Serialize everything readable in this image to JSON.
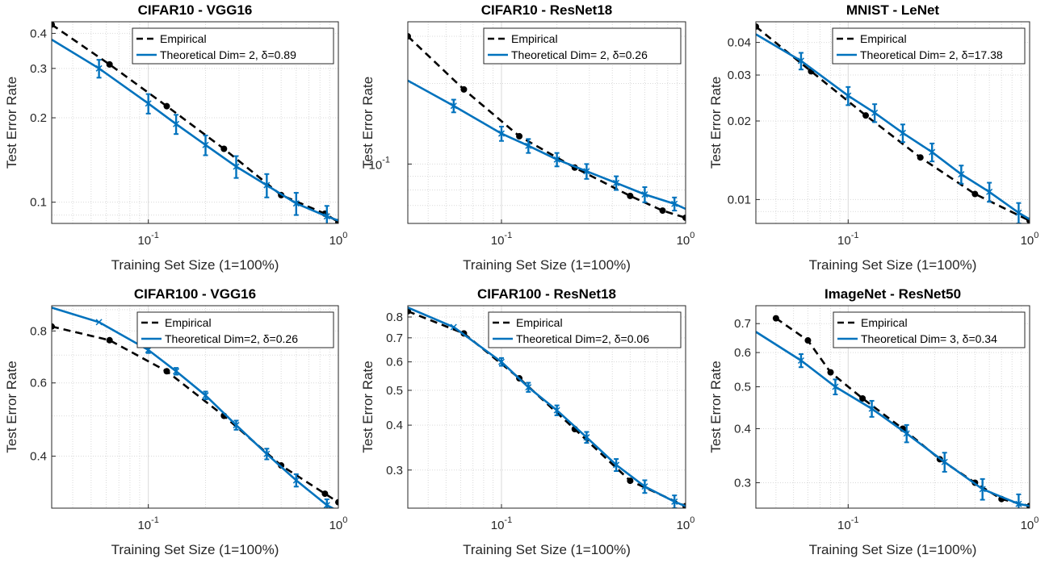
{
  "colors": {
    "empirical": "#000000",
    "theoretical": "#0072BD",
    "grid": "#d9d9d9",
    "axis": "#262626"
  },
  "chart_data": [
    {
      "type": "line",
      "title": "CIFAR10 - VGG16",
      "xlabel": "Training Set Size (1=100%)",
      "ylabel": "Test Error Rate",
      "xscale": "log",
      "yscale": "log",
      "xlim": [
        0.031,
        1.0
      ],
      "ylim": [
        0.084,
        0.44
      ],
      "xticks": [
        {
          "v": 0.1,
          "b": "10",
          "e": "-1"
        },
        {
          "v": 1,
          "b": "10",
          "e": "0"
        }
      ],
      "yticks": [
        {
          "v": 0.1,
          "t": "0.1"
        },
        {
          "v": 0.2,
          "t": "0.2"
        },
        {
          "v": 0.3,
          "t": "0.3"
        },
        {
          "v": 0.4,
          "t": "0.4"
        }
      ],
      "grid": true,
      "legend_position": "top-right",
      "series": [
        {
          "name": "Empirical",
          "kind": "empirical",
          "x": [
            0.031,
            0.0625,
            0.125,
            0.25,
            0.5,
            0.85,
            1.0
          ],
          "y": [
            0.43,
            0.31,
            0.22,
            0.155,
            0.106,
            0.091,
            0.085
          ]
        },
        {
          "name": "Theoretical Dim= 2, δ=0.89",
          "kind": "theoretical",
          "x": [
            0.031,
            0.055,
            0.1,
            0.14,
            0.2,
            0.29,
            0.42,
            0.6,
            0.87,
            1.0
          ],
          "y": [
            0.38,
            0.3,
            0.225,
            0.19,
            0.16,
            0.134,
            0.115,
            0.099,
            0.089,
            0.086
          ],
          "err": [
            0.0,
            0.022,
            0.018,
            0.015,
            0.013,
            0.012,
            0.011,
            0.009,
            0.008,
            0.0
          ]
        }
      ]
    },
    {
      "type": "line",
      "title": "CIFAR10 - ResNet18",
      "xlabel": "Training Set Size (1=100%)",
      "ylabel": "Test Error Rate",
      "xscale": "log",
      "yscale": "log",
      "xlim": [
        0.031,
        1.0
      ],
      "ylim": [
        0.06,
        0.34
      ],
      "xticks": [
        {
          "v": 0.1,
          "b": "10",
          "e": "-1"
        },
        {
          "v": 1,
          "b": "10",
          "e": "0"
        }
      ],
      "yticks": [
        {
          "v": 0.1,
          "b": "10",
          "e": "-1"
        }
      ],
      "grid": true,
      "legend_position": "top-right",
      "series": [
        {
          "name": "Empirical",
          "kind": "empirical",
          "x": [
            0.031,
            0.0625,
            0.125,
            0.25,
            0.5,
            0.75,
            1.0
          ],
          "y": [
            0.3,
            0.19,
            0.127,
            0.097,
            0.076,
            0.067,
            0.063
          ]
        },
        {
          "name": "Theoretical Dim= 2, δ=0.26",
          "kind": "theoretical",
          "x": [
            0.031,
            0.055,
            0.1,
            0.14,
            0.2,
            0.29,
            0.42,
            0.6,
            0.87,
            1.0
          ],
          "y": [
            0.205,
            0.165,
            0.13,
            0.117,
            0.104,
            0.094,
            0.085,
            0.077,
            0.071,
            0.068
          ],
          "err": [
            0.0,
            0.009,
            0.008,
            0.007,
            0.006,
            0.006,
            0.005,
            0.005,
            0.004,
            0.0
          ]
        }
      ]
    },
    {
      "type": "line",
      "title": "MNIST - LeNet",
      "xlabel": "Training Set Size (1=100%)",
      "ylabel": "Test Error Rate",
      "xscale": "log",
      "yscale": "log",
      "xlim": [
        0.031,
        1.0
      ],
      "ylim": [
        0.0081,
        0.048
      ],
      "xticks": [
        {
          "v": 0.1,
          "b": "10",
          "e": "-1"
        },
        {
          "v": 1,
          "b": "10",
          "e": "0"
        }
      ],
      "yticks": [
        {
          "v": 0.01,
          "t": "0.01"
        },
        {
          "v": 0.02,
          "t": "0.02"
        },
        {
          "v": 0.03,
          "t": "0.03"
        },
        {
          "v": 0.04,
          "t": "0.04"
        }
      ],
      "grid": true,
      "legend_position": "top-right",
      "series": [
        {
          "name": "Empirical",
          "kind": "empirical",
          "x": [
            0.031,
            0.0625,
            0.125,
            0.25,
            0.5,
            1.0
          ],
          "y": [
            0.046,
            0.031,
            0.021,
            0.0145,
            0.0105,
            0.0083
          ]
        },
        {
          "name": "Theoretical Dim= 2, δ=17.38",
          "kind": "theoretical",
          "x": [
            0.031,
            0.055,
            0.1,
            0.14,
            0.2,
            0.29,
            0.42,
            0.6,
            0.87,
            1.0
          ],
          "y": [
            0.043,
            0.034,
            0.025,
            0.0215,
            0.018,
            0.0152,
            0.0125,
            0.0107,
            0.0089,
            0.0084
          ],
          "err": [
            0.0,
            0.0025,
            0.002,
            0.0017,
            0.0014,
            0.0012,
            0.001,
            0.0009,
            0.0008,
            0.0
          ]
        }
      ]
    },
    {
      "type": "line",
      "title": "CIFAR100 - VGG16",
      "xlabel": "Training Set Size (1=100%)",
      "ylabel": "Test Error Rate",
      "xscale": "log",
      "yscale": "log",
      "xlim": [
        0.031,
        1.0
      ],
      "ylim": [
        0.3,
        0.92
      ],
      "xticks": [
        {
          "v": 0.1,
          "b": "10",
          "e": "-1"
        },
        {
          "v": 1,
          "b": "10",
          "e": "0"
        }
      ],
      "yticks": [
        {
          "v": 0.4,
          "t": "0.4"
        },
        {
          "v": 0.6,
          "t": "0.6"
        },
        {
          "v": 0.8,
          "t": "0.8"
        }
      ],
      "grid": true,
      "legend_position": "top-right",
      "series": [
        {
          "name": "Empirical",
          "kind": "empirical",
          "x": [
            0.031,
            0.0625,
            0.125,
            0.25,
            0.5,
            0.85,
            1.0
          ],
          "y": [
            0.82,
            0.76,
            0.64,
            0.5,
            0.38,
            0.325,
            0.31
          ]
        },
        {
          "name": "Theoretical Dim=2, δ=0.26",
          "kind": "theoretical",
          "x": [
            0.031,
            0.055,
            0.1,
            0.14,
            0.2,
            0.29,
            0.42,
            0.6,
            0.87,
            1.0
          ],
          "y": [
            0.91,
            0.84,
            0.72,
            0.64,
            0.56,
            0.475,
            0.405,
            0.35,
            0.305,
            0.295
          ],
          "err": [
            0.0,
            0.0,
            0.012,
            0.012,
            0.012,
            0.012,
            0.012,
            0.012,
            0.01,
            0.0
          ]
        }
      ]
    },
    {
      "type": "line",
      "title": "CIFAR100 - ResNet18",
      "xlabel": "Training Set Size (1=100%)",
      "ylabel": "Test Error Rate",
      "xscale": "log",
      "yscale": "log",
      "xlim": [
        0.031,
        1.0
      ],
      "ylim": [
        0.235,
        0.86
      ],
      "xticks": [
        {
          "v": 0.1,
          "b": "10",
          "e": "-1"
        },
        {
          "v": 1,
          "b": "10",
          "e": "0"
        }
      ],
      "yticks": [
        {
          "v": 0.3,
          "t": "0.3"
        },
        {
          "v": 0.4,
          "t": "0.4"
        },
        {
          "v": 0.5,
          "t": "0.5"
        },
        {
          "v": 0.6,
          "t": "0.6"
        },
        {
          "v": 0.7,
          "t": "0.7"
        },
        {
          "v": 0.8,
          "t": "0.8"
        }
      ],
      "grid": true,
      "legend_position": "top-right",
      "series": [
        {
          "name": "Empirical",
          "kind": "empirical",
          "x": [
            0.031,
            0.0625,
            0.125,
            0.25,
            0.5,
            1.0
          ],
          "y": [
            0.83,
            0.72,
            0.54,
            0.39,
            0.28,
            0.238
          ]
        },
        {
          "name": "Theoretical Dim=2, δ=0.06",
          "kind": "theoretical",
          "x": [
            0.031,
            0.055,
            0.1,
            0.14,
            0.2,
            0.29,
            0.42,
            0.6,
            0.87,
            1.0
          ],
          "y": [
            0.85,
            0.75,
            0.6,
            0.51,
            0.44,
            0.37,
            0.31,
            0.27,
            0.245,
            0.238
          ],
          "err": [
            0.0,
            0.0,
            0.015,
            0.015,
            0.014,
            0.013,
            0.012,
            0.011,
            0.01,
            0.0
          ]
        }
      ]
    },
    {
      "type": "line",
      "title": "ImageNet - ResNet50",
      "xlabel": "Training Set Size (1=100%)",
      "ylabel": "Test Error Rate",
      "xscale": "log",
      "yscale": "log",
      "xlim": [
        0.031,
        1.0
      ],
      "ylim": [
        0.262,
        0.77
      ],
      "xticks": [
        {
          "v": 0.1,
          "b": "10",
          "e": "-1"
        },
        {
          "v": 1,
          "b": "10",
          "e": "0"
        }
      ],
      "yticks": [
        {
          "v": 0.3,
          "t": "0.3"
        },
        {
          "v": 0.4,
          "t": "0.4"
        },
        {
          "v": 0.5,
          "t": "0.5"
        },
        {
          "v": 0.6,
          "t": "0.6"
        },
        {
          "v": 0.7,
          "t": "0.7"
        }
      ],
      "grid": true,
      "legend_position": "top-right",
      "series": [
        {
          "name": "Empirical",
          "kind": "empirical",
          "x": [
            0.04,
            0.06,
            0.08,
            0.12,
            0.2,
            0.32,
            0.5,
            0.7,
            1.0
          ],
          "y": [
            0.72,
            0.64,
            0.54,
            0.47,
            0.4,
            0.34,
            0.3,
            0.275,
            0.265
          ]
        },
        {
          "name": "Theoretical Dim= 3, δ=0.34",
          "kind": "theoretical",
          "x": [
            0.031,
            0.055,
            0.085,
            0.135,
            0.21,
            0.34,
            0.55,
            0.87,
            1.0
          ],
          "y": [
            0.67,
            0.575,
            0.5,
            0.445,
            0.39,
            0.335,
            0.29,
            0.268,
            0.265
          ],
          "err": [
            0.0,
            0.02,
            0.02,
            0.019,
            0.018,
            0.017,
            0.016,
            0.014,
            0.0
          ]
        }
      ]
    }
  ]
}
